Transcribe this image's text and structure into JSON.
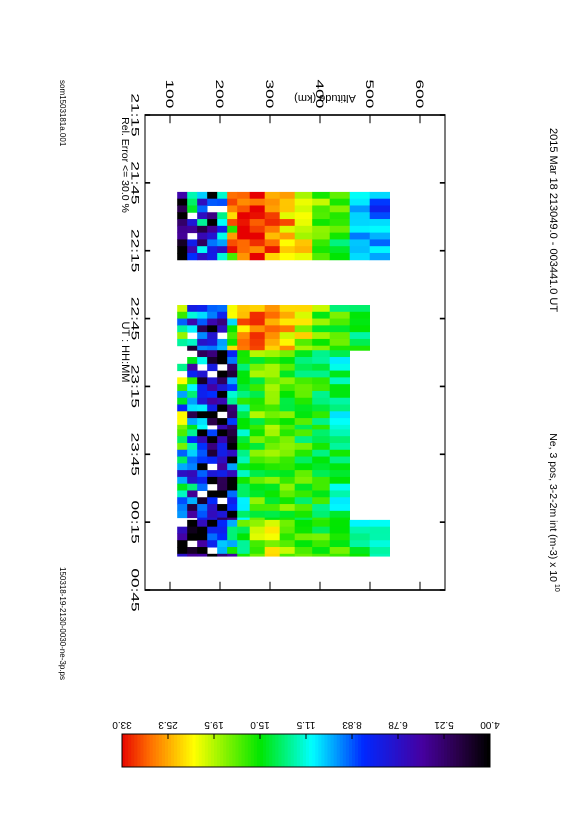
{
  "chart_data": {
    "type": "heatmap",
    "title": "2015 Mar 18    213049.0 - 003441.0 UT",
    "subtitle": "Ne, 3 pos, 3-2-2m int (m-3) x 10",
    "subtitle_exponent": "10",
    "xlabel": "UT : HH:MM",
    "ylabel": "Altitude (km)",
    "note": "Rel. Error <= 30.0 %",
    "footer_left": "som1503181a.001",
    "footer_right": "150318-19-2130-0030-ne-3p.ps",
    "x_ticks": [
      "21:15",
      "21:45",
      "22:15",
      "22:45",
      "23:15",
      "23:45",
      "00:15",
      "00:45"
    ],
    "x_range_minutes": [
      0,
      210
    ],
    "y_ticks": [
      "100",
      "200",
      "300",
      "400",
      "500",
      "600"
    ],
    "y_range": [
      50,
      650
    ],
    "colorbar_ticks": [
      "4.00",
      "5.21",
      "6.78",
      "8.83",
      "11.5",
      "15.0",
      "19.5",
      "25.3",
      "33.0"
    ],
    "color_scale": "log, 4.00 to 33.0 x 10^10 m-3",
    "altitude_bins": [
      [
        115,
        135
      ],
      [
        135,
        155
      ],
      [
        155,
        175
      ],
      [
        175,
        195
      ],
      [
        195,
        215
      ],
      [
        215,
        235
      ],
      [
        235,
        260
      ],
      [
        260,
        290
      ],
      [
        290,
        320
      ],
      [
        320,
        350
      ],
      [
        350,
        385
      ],
      [
        385,
        420
      ],
      [
        420,
        460
      ],
      [
        460,
        500
      ],
      [
        500,
        540
      ],
      [
        540,
        580
      ]
    ],
    "gap": [
      "22:19",
      "22:39"
    ],
    "series": [
      {
        "start_min": 34,
        "end_min": 64,
        "profile": [
          5.2,
          10.5,
          8.6,
          6.0,
          9.5,
          22,
          30,
          31,
          28,
          25,
          21,
          17,
          15.5,
          9.8,
          9.3,
          11.5
        ],
        "top_bin": 14
      },
      {
        "start_min": 84,
        "end_min": 104,
        "profile": [
          18.5,
          8.0,
          7.0,
          6.0,
          8.0,
          15,
          26,
          28,
          27,
          24,
          20,
          17,
          15.5,
          13.5,
          12.0,
          10.0
        ],
        "top_bin": 13
      },
      {
        "start_min": 104,
        "end_min": 139,
        "profile": [
          16.5,
          10.5,
          8.0,
          6.0,
          5.3,
          8.5,
          14.5,
          16.5,
          17.0,
          16.0,
          15.0,
          14.0,
          12.5,
          10.5,
          9.5,
          9.0
        ],
        "top_bin": 12
      },
      {
        "start_min": 139,
        "end_min": 179,
        "profile": [
          11.5,
          9.0,
          7.0,
          5.5,
          5.0,
          7.5,
          13.0,
          16.0,
          16.5,
          16.5,
          15.5,
          14.5,
          13.0,
          11.5,
          10.0,
          10.0
        ],
        "top_bin": 12
      },
      {
        "start_min": 179,
        "end_min": 195,
        "profile": [
          4.5,
          4.0,
          4.5,
          6.0,
          7.0,
          11.0,
          15.0,
          19.0,
          20.0,
          19.0,
          17.0,
          16.0,
          15.0,
          13.0,
          10.5,
          8.5
        ],
        "top_bin": 14
      }
    ]
  }
}
